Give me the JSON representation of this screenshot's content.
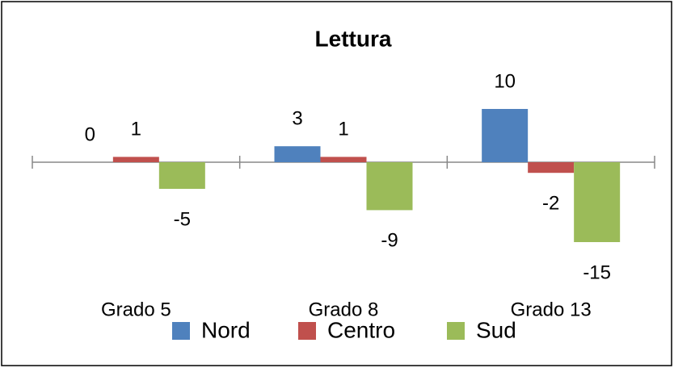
{
  "chart_data": {
    "type": "bar",
    "title": "Lettura",
    "categories": [
      "Grado 5",
      "Grado 8",
      "Grado 13"
    ],
    "series": [
      {
        "name": "Nord",
        "color": "#4f81bd",
        "values": [
          0,
          3,
          10
        ]
      },
      {
        "name": "Centro",
        "color": "#c0504d",
        "values": [
          1,
          1,
          -2
        ]
      },
      {
        "name": "Sud",
        "color": "#9bbb59",
        "values": [
          -5,
          -9,
          -15
        ]
      }
    ],
    "legend": "bottom"
  }
}
